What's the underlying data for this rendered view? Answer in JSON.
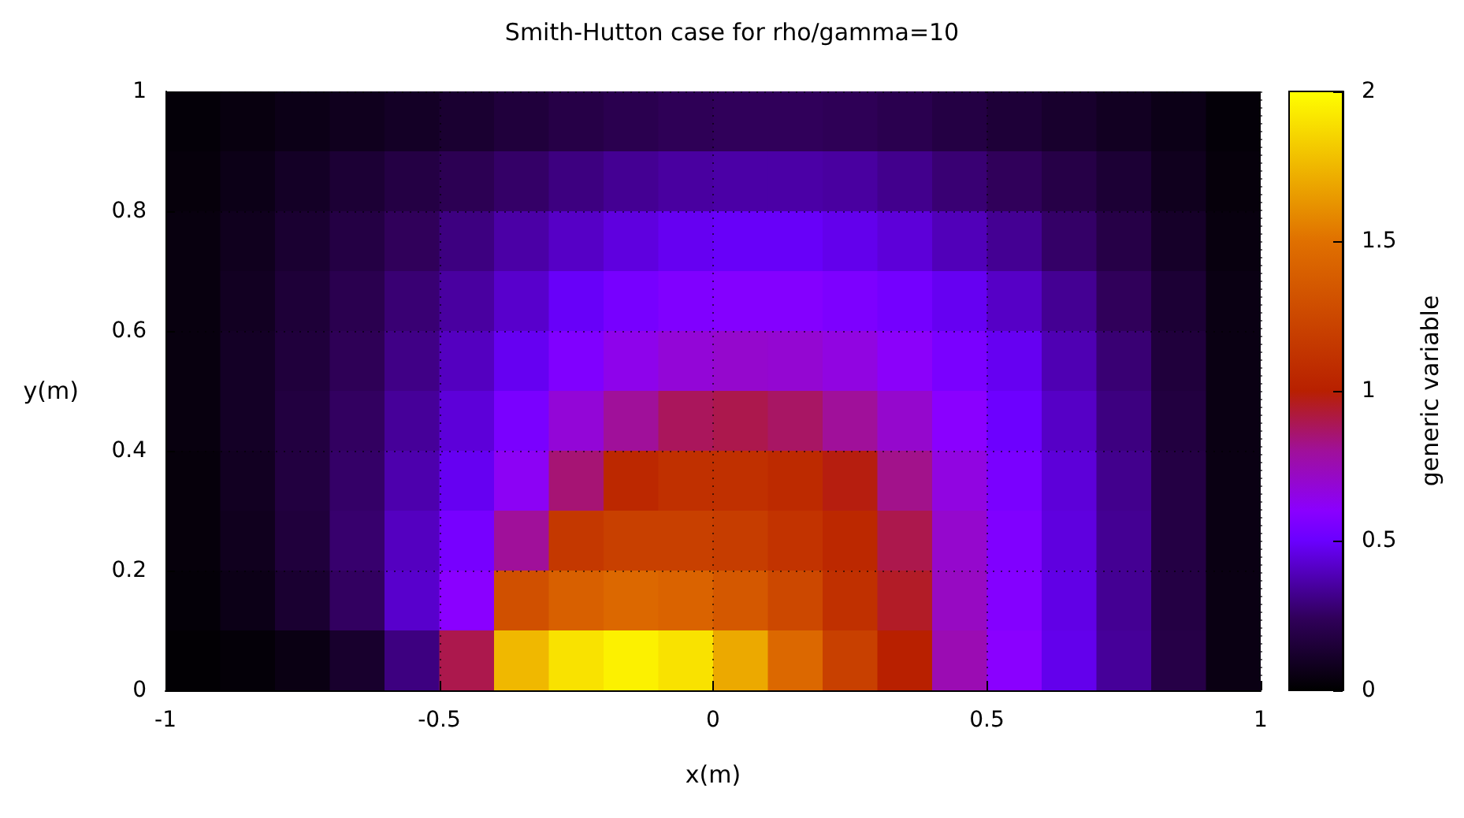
{
  "chart_data": {
    "type": "heatmap",
    "title": "Smith-Hutton case for rho/gamma=10",
    "xlabel": "x(m)",
    "ylabel": "y(m)",
    "clabel": "generic variable",
    "x": [
      -0.95,
      -0.85,
      -0.75,
      -0.65,
      -0.55,
      -0.45,
      -0.35,
      -0.25,
      -0.15,
      -0.05,
      0.05,
      0.15,
      0.25,
      0.35,
      0.45,
      0.55,
      0.65,
      0.75,
      0.85,
      0.95
    ],
    "y": [
      0.95,
      0.85,
      0.75,
      0.65,
      0.55,
      0.45,
      0.35,
      0.25,
      0.15,
      0.05
    ],
    "xlim": [
      -1,
      1
    ],
    "xticks": [
      -1,
      -0.5,
      0,
      0.5,
      1
    ],
    "ylim": [
      0,
      1
    ],
    "yticks": [
      0,
      0.2,
      0.4,
      0.6,
      0.8,
      1
    ],
    "clim": [
      0,
      2
    ],
    "cticks": [
      0,
      0.5,
      1,
      1.5,
      2
    ],
    "grid": true,
    "cells": [
      [
        0.02,
        0.04,
        0.06,
        0.08,
        0.1,
        0.13,
        0.16,
        0.19,
        0.21,
        0.23,
        0.24,
        0.24,
        0.23,
        0.21,
        0.18,
        0.15,
        0.12,
        0.09,
        0.06,
        0.02
      ],
      [
        0.03,
        0.06,
        0.1,
        0.14,
        0.18,
        0.22,
        0.26,
        0.3,
        0.33,
        0.35,
        0.36,
        0.36,
        0.35,
        0.32,
        0.28,
        0.24,
        0.19,
        0.14,
        0.08,
        0.03
      ],
      [
        0.04,
        0.08,
        0.13,
        0.18,
        0.24,
        0.3,
        0.36,
        0.41,
        0.45,
        0.48,
        0.49,
        0.49,
        0.47,
        0.44,
        0.39,
        0.33,
        0.26,
        0.19,
        0.11,
        0.04
      ],
      [
        0.04,
        0.09,
        0.15,
        0.21,
        0.28,
        0.35,
        0.42,
        0.49,
        0.54,
        0.57,
        0.58,
        0.58,
        0.56,
        0.53,
        0.48,
        0.41,
        0.33,
        0.24,
        0.14,
        0.05
      ],
      [
        0.04,
        0.1,
        0.16,
        0.23,
        0.31,
        0.4,
        0.48,
        0.57,
        0.64,
        0.68,
        0.7,
        0.69,
        0.66,
        0.61,
        0.55,
        0.48,
        0.38,
        0.28,
        0.16,
        0.05
      ],
      [
        0.04,
        0.1,
        0.17,
        0.25,
        0.34,
        0.44,
        0.55,
        0.68,
        0.8,
        0.88,
        0.9,
        0.87,
        0.8,
        0.7,
        0.6,
        0.51,
        0.41,
        0.3,
        0.17,
        0.05
      ],
      [
        0.03,
        0.09,
        0.17,
        0.26,
        0.37,
        0.48,
        0.62,
        0.85,
        1.05,
        1.1,
        1.1,
        1.06,
        0.98,
        0.82,
        0.66,
        0.55,
        0.44,
        0.32,
        0.18,
        0.05
      ],
      [
        0.03,
        0.08,
        0.16,
        0.27,
        0.4,
        0.54,
        0.8,
        1.15,
        1.2,
        1.2,
        1.18,
        1.12,
        1.05,
        0.9,
        0.7,
        0.57,
        0.45,
        0.33,
        0.18,
        0.05
      ],
      [
        0.02,
        0.06,
        0.13,
        0.25,
        0.42,
        0.6,
        1.3,
        1.4,
        1.45,
        1.42,
        1.35,
        1.25,
        1.1,
        0.95,
        0.72,
        0.58,
        0.46,
        0.33,
        0.18,
        0.05
      ],
      [
        0.01,
        0.02,
        0.05,
        0.12,
        0.3,
        0.9,
        1.75,
        1.9,
        1.95,
        1.9,
        1.7,
        1.45,
        1.2,
        1.0,
        0.75,
        0.6,
        0.47,
        0.34,
        0.19,
        0.05
      ]
    ]
  }
}
